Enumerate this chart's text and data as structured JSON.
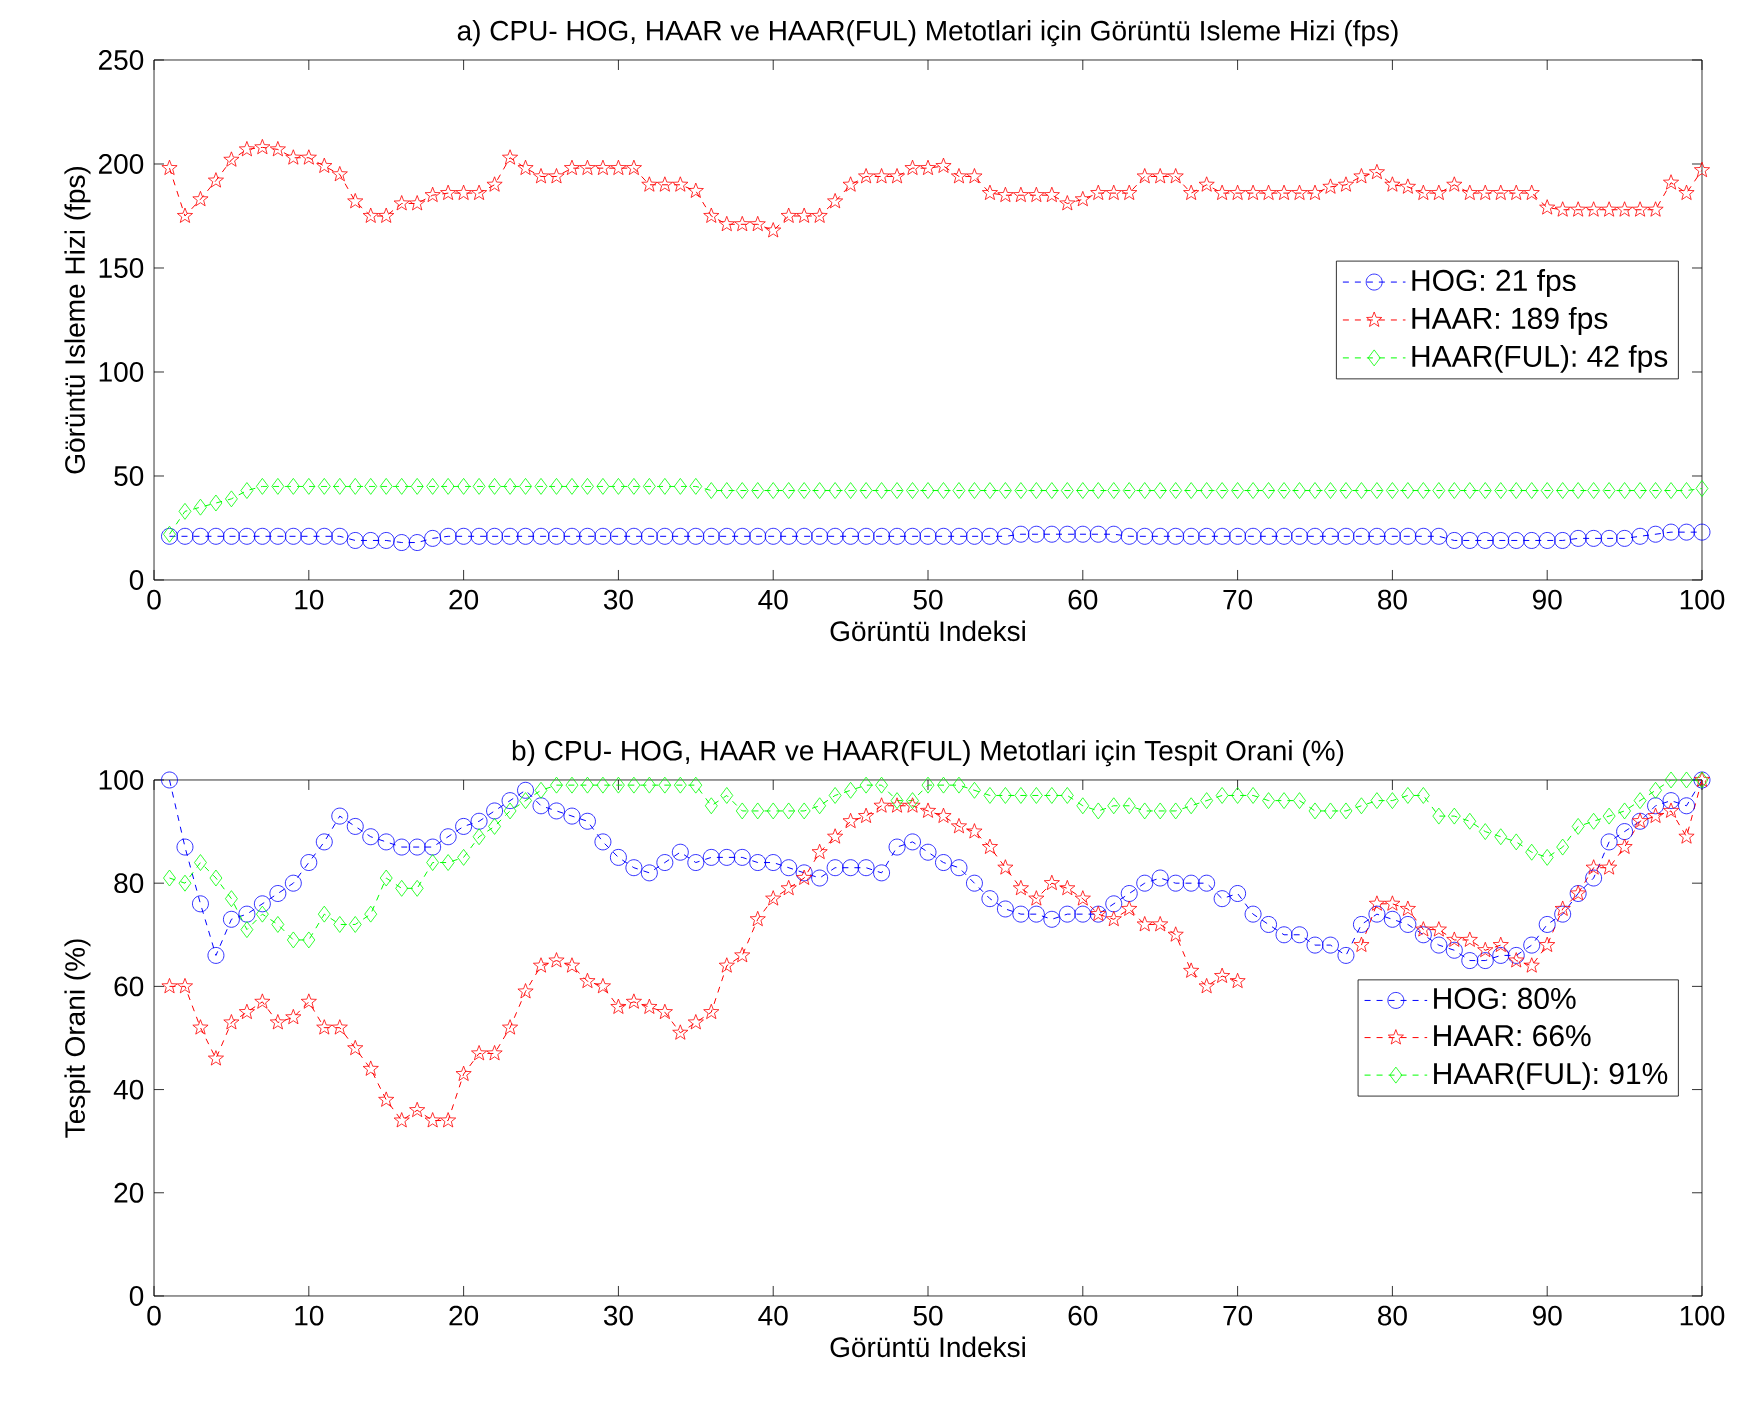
{
  "chart_data": [
    {
      "type": "line",
      "title": "a) CPU- HOG, HAAR ve HAAR(FUL) Metotlari için Görüntü Isleme Hizi (fps)",
      "xlabel": "Görüntü Indeksi",
      "ylabel": "Görüntü Isleme Hizi (fps)",
      "x": [
        1,
        2,
        3,
        4,
        5,
        6,
        7,
        8,
        9,
        10,
        11,
        12,
        13,
        14,
        15,
        16,
        17,
        18,
        19,
        20,
        21,
        22,
        23,
        24,
        25,
        26,
        27,
        28,
        29,
        30,
        31,
        32,
        33,
        34,
        35,
        36,
        37,
        38,
        39,
        40,
        41,
        42,
        43,
        44,
        45,
        46,
        47,
        48,
        49,
        50,
        51,
        52,
        53,
        54,
        55,
        56,
        57,
        58,
        59,
        60,
        61,
        62,
        63,
        64,
        65,
        66,
        67,
        68,
        69,
        70,
        71,
        72,
        73,
        74,
        75,
        76,
        77,
        78,
        79,
        80,
        81,
        82,
        83,
        84,
        85,
        86,
        87,
        88,
        89,
        90,
        91,
        92,
        93,
        94,
        95,
        96,
        97,
        98,
        99,
        100
      ],
      "xlim": [
        0,
        100
      ],
      "xticks": [
        0,
        10,
        20,
        30,
        40,
        50,
        60,
        70,
        80,
        90,
        100
      ],
      "ylim": [
        0,
        250
      ],
      "yticks": [
        0,
        50,
        100,
        150,
        200,
        250
      ],
      "legend": "right",
      "line_style": "dashed",
      "series": [
        {
          "name": "HOG: 21 fps",
          "color": "#0000ff",
          "marker": "circle",
          "values": [
            21,
            21,
            21,
            21,
            21,
            21,
            21,
            21,
            21,
            21,
            21,
            21,
            19,
            19,
            19,
            18,
            18,
            20,
            21,
            21,
            21,
            21,
            21,
            21,
            21,
            21,
            21,
            21,
            21,
            21,
            21,
            21,
            21,
            21,
            21,
            21,
            21,
            21,
            21,
            21,
            21,
            21,
            21,
            21,
            21,
            21,
            21,
            21,
            21,
            21,
            21,
            21,
            21,
            21,
            21,
            22,
            22,
            22,
            22,
            22,
            22,
            22,
            21,
            21,
            21,
            21,
            21,
            21,
            21,
            21,
            21,
            21,
            21,
            21,
            21,
            21,
            21,
            21,
            21,
            21,
            21,
            21,
            21,
            19,
            19,
            19,
            19,
            19,
            19,
            19,
            19,
            20,
            20,
            20,
            20,
            21,
            22,
            23,
            23,
            23
          ]
        },
        {
          "name": "HAAR: 189 fps",
          "color": "#ff0000",
          "marker": "star",
          "values": [
            198,
            175,
            183,
            192,
            202,
            207,
            208,
            207,
            203,
            203,
            199,
            195,
            182,
            175,
            175,
            181,
            181,
            185,
            186,
            186,
            186,
            190,
            203,
            198,
            194,
            194,
            198,
            198,
            198,
            198,
            198,
            190,
            190,
            190,
            187,
            175,
            171,
            171,
            171,
            168,
            175,
            175,
            175,
            182,
            190,
            194,
            194,
            194,
            198,
            198,
            199,
            194,
            194,
            186,
            185,
            185,
            185,
            185,
            181,
            183,
            186,
            186,
            186,
            194,
            194,
            194,
            186,
            190,
            186,
            186,
            186,
            186,
            186,
            186,
            186,
            189,
            190,
            194,
            196,
            190,
            189,
            186,
            186,
            190,
            186,
            186,
            186,
            186,
            186,
            179,
            178,
            178,
            178,
            178,
            178,
            178,
            178,
            191,
            186,
            197
          ]
        },
        {
          "name": "HAAR(FUL): 42 fps",
          "color": "#00ff00",
          "marker": "diamond",
          "values": [
            22,
            33,
            35,
            37,
            39,
            43,
            45,
            45,
            45,
            45,
            45,
            45,
            45,
            45,
            45,
            45,
            45,
            45,
            45,
            45,
            45,
            45,
            45,
            45,
            45,
            45,
            45,
            45,
            45,
            45,
            45,
            45,
            45,
            45,
            45,
            43,
            43,
            43,
            43,
            43,
            43,
            43,
            43,
            43,
            43,
            43,
            43,
            43,
            43,
            43,
            43,
            43,
            43,
            43,
            43,
            43,
            43,
            43,
            43,
            43,
            43,
            43,
            43,
            43,
            43,
            43,
            43,
            43,
            43,
            43,
            43,
            43,
            43,
            43,
            43,
            43,
            43,
            43,
            43,
            43,
            43,
            43,
            43,
            43,
            43,
            43,
            43,
            43,
            43,
            43,
            43,
            43,
            43,
            43,
            43,
            43,
            43,
            43,
            43,
            44
          ]
        }
      ]
    },
    {
      "type": "line",
      "title": "b) CPU- HOG, HAAR ve HAAR(FUL) Metotlari için Tespit Orani (%)",
      "xlabel": "Görüntü Indeksi",
      "ylabel": "Tespit Orani (%)",
      "x": [
        1,
        2,
        3,
        4,
        5,
        6,
        7,
        8,
        9,
        10,
        11,
        12,
        13,
        14,
        15,
        16,
        17,
        18,
        19,
        20,
        21,
        22,
        23,
        24,
        25,
        26,
        27,
        28,
        29,
        30,
        31,
        32,
        33,
        34,
        35,
        36,
        37,
        38,
        39,
        40,
        41,
        42,
        43,
        44,
        45,
        46,
        47,
        48,
        49,
        50,
        51,
        52,
        53,
        54,
        55,
        56,
        57,
        58,
        59,
        60,
        61,
        62,
        63,
        64,
        65,
        66,
        67,
        68,
        69,
        70,
        71,
        72,
        73,
        74,
        75,
        76,
        77,
        78,
        79,
        80,
        81,
        82,
        83,
        84,
        85,
        86,
        87,
        88,
        89,
        90,
        91,
        92,
        93,
        94,
        95,
        96,
        97,
        98,
        99,
        100
      ],
      "xlim": [
        0,
        100
      ],
      "xticks": [
        0,
        10,
        20,
        30,
        40,
        50,
        60,
        70,
        80,
        90,
        100
      ],
      "ylim": [
        0,
        100
      ],
      "yticks": [
        0,
        20,
        40,
        60,
        80,
        100
      ],
      "legend": "right",
      "line_style": "dashed",
      "series": [
        {
          "name": "HOG: 80%",
          "color": "#0000ff",
          "marker": "circle",
          "values": [
            100,
            87,
            76,
            66,
            73,
            74,
            76,
            78,
            80,
            84,
            88,
            93,
            91,
            89,
            88,
            87,
            87,
            87,
            89,
            91,
            92,
            94,
            96,
            98,
            95,
            94,
            93,
            92,
            88,
            85,
            83,
            82,
            84,
            86,
            84,
            85,
            85,
            85,
            84,
            84,
            83,
            82,
            81,
            83,
            83,
            83,
            82,
            87,
            88,
            86,
            84,
            83,
            80,
            77,
            75,
            74,
            74,
            73,
            74,
            74,
            74,
            76,
            78,
            80,
            81,
            80,
            80,
            80,
            77,
            78,
            74,
            72,
            70,
            70,
            68,
            68,
            66,
            72,
            74,
            73,
            72,
            70,
            68,
            67,
            65,
            65,
            66,
            66,
            68,
            72,
            74,
            78,
            81,
            88,
            90,
            92,
            95,
            96,
            95,
            100
          ]
        },
        {
          "name": "HAAR: 66%",
          "color": "#ff0000",
          "marker": "star",
          "values": [
            60,
            60,
            52,
            46,
            53,
            55,
            57,
            53,
            54,
            57,
            52,
            52,
            48,
            44,
            38,
            34,
            36,
            34,
            34,
            43,
            47,
            47,
            52,
            59,
            64,
            65,
            64,
            61,
            60,
            56,
            57,
            56,
            55,
            51,
            53,
            55,
            64,
            66,
            73,
            77,
            79,
            81,
            86,
            89,
            92,
            93,
            95,
            95,
            95,
            94,
            93,
            91,
            90,
            87,
            83,
            79,
            77,
            80,
            79,
            77,
            74,
            73,
            75,
            72,
            72,
            70,
            63,
            60,
            62,
            61,
            null,
            null,
            null,
            null,
            null,
            null,
            null,
            68,
            76,
            76,
            75,
            71,
            71,
            69,
            69,
            67,
            68,
            65,
            64,
            68,
            75,
            78,
            83,
            83,
            87,
            92,
            93,
            94,
            89,
            100
          ]
        },
        {
          "name": "HAAR(FUL): 91%",
          "color": "#00ff00",
          "marker": "diamond",
          "values": [
            81,
            80,
            84,
            81,
            77,
            71,
            74,
            72,
            69,
            69,
            74,
            72,
            72,
            74,
            81,
            79,
            79,
            84,
            84,
            85,
            89,
            91,
            94,
            96,
            98,
            99,
            99,
            99,
            99,
            99,
            99,
            99,
            99,
            99,
            99,
            95,
            97,
            94,
            94,
            94,
            94,
            94,
            95,
            97,
            98,
            99,
            99,
            96,
            96,
            99,
            99,
            99,
            98,
            97,
            97,
            97,
            97,
            97,
            97,
            95,
            94,
            95,
            95,
            94,
            94,
            94,
            95,
            96,
            97,
            97,
            97,
            96,
            96,
            96,
            94,
            94,
            94,
            95,
            96,
            96,
            97,
            97,
            93,
            93,
            92,
            90,
            89,
            88,
            86,
            85,
            87,
            91,
            92,
            93,
            94,
            96,
            98,
            100,
            100,
            100
          ]
        }
      ]
    }
  ]
}
